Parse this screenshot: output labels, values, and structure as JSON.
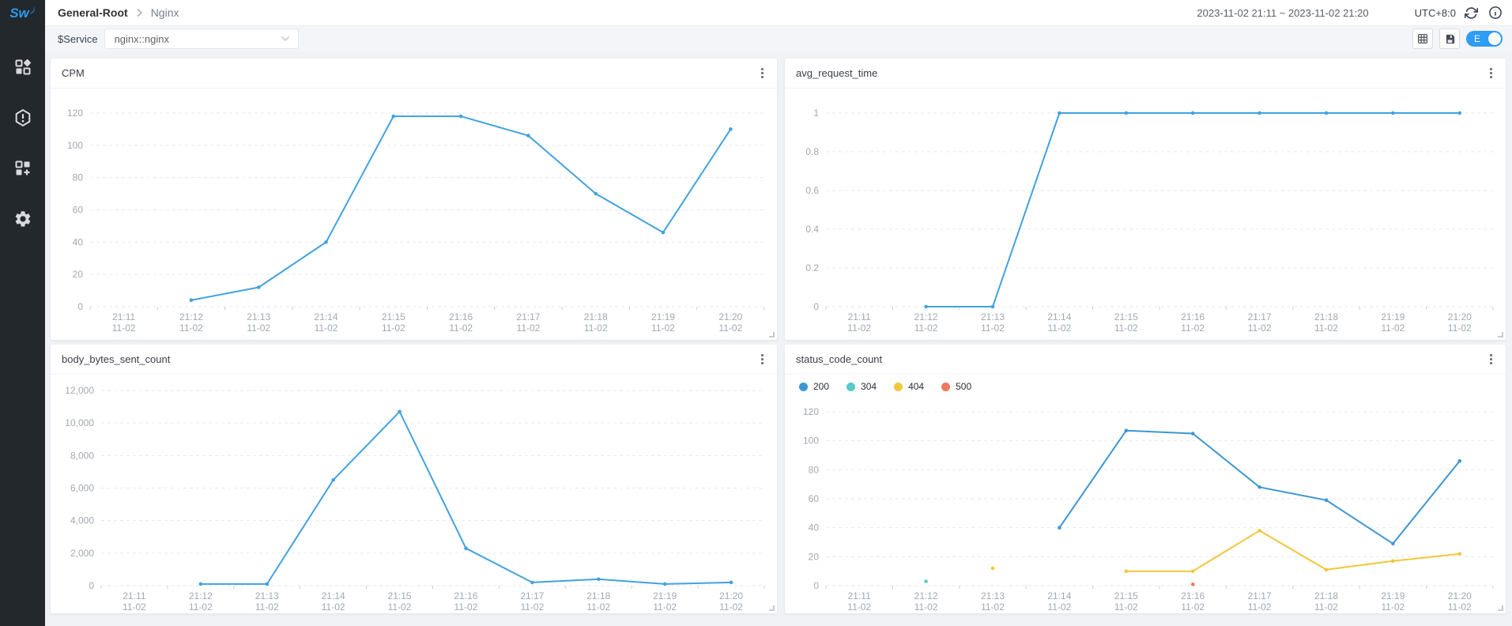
{
  "sidebar": {
    "logo_text": "Sw",
    "items": [
      {
        "name": "marketplace",
        "icon": "marketplace-icon"
      },
      {
        "name": "alerts",
        "icon": "alert-hexagon-icon"
      },
      {
        "name": "dashboards",
        "icon": "widgets-plus-icon"
      },
      {
        "name": "settings",
        "icon": "gear-icon"
      }
    ]
  },
  "header": {
    "breadcrumb": {
      "root": "General-Root",
      "current": "Nginx"
    },
    "time_range": "2023-11-02 21:11 ~ 2023-11-02 21:20",
    "timezone": "UTC+8:0"
  },
  "toolbar": {
    "variable_label": "$Service",
    "service_select": {
      "value": "nginx::nginx"
    },
    "edit_toggle": {
      "label": "E",
      "state": "on",
      "color": "#2f9cf5"
    }
  },
  "chart_data": [
    {
      "type": "line",
      "title": "CPM",
      "x": [
        "21:11",
        "21:12",
        "21:13",
        "21:14",
        "21:15",
        "21:16",
        "21:17",
        "21:18",
        "21:19",
        "21:20"
      ],
      "x_sublabel": "11-02",
      "ylim": [
        0,
        120
      ],
      "yticks": [
        0,
        20,
        40,
        60,
        80,
        100,
        120
      ],
      "grid": "horizontal-dashed",
      "legend": false,
      "series": [
        {
          "name": "CPM",
          "color": "#41a2e0",
          "values": [
            null,
            4,
            12,
            40,
            118,
            118,
            106,
            70,
            46,
            110
          ]
        }
      ]
    },
    {
      "type": "line",
      "title": "avg_request_time",
      "x": [
        "21:11",
        "21:12",
        "21:13",
        "21:14",
        "21:15",
        "21:16",
        "21:17",
        "21:18",
        "21:19",
        "21:20"
      ],
      "x_sublabel": "11-02",
      "ylim": [
        0,
        1
      ],
      "yticks": [
        0,
        0.2,
        0.4,
        0.6,
        0.8,
        1
      ],
      "grid": "horizontal-dashed",
      "legend": false,
      "series": [
        {
          "name": "avg_request_time",
          "color": "#41a2e0",
          "values": [
            null,
            0,
            0,
            1,
            1,
            1,
            1,
            1,
            1,
            1
          ]
        }
      ]
    },
    {
      "type": "line",
      "title": "body_bytes_sent_count",
      "x": [
        "21:11",
        "21:12",
        "21:13",
        "21:14",
        "21:15",
        "21:16",
        "21:17",
        "21:18",
        "21:19",
        "21:20"
      ],
      "x_sublabel": "11-02",
      "ylim": [
        0,
        12000
      ],
      "yticks": [
        0,
        2000,
        4000,
        6000,
        8000,
        10000,
        12000
      ],
      "grid": "horizontal-dashed",
      "legend": false,
      "series": [
        {
          "name": "body_bytes_sent_count",
          "color": "#41a2e0",
          "values": [
            null,
            100,
            100,
            6500,
            10700,
            2300,
            200,
            400,
            100,
            200
          ]
        }
      ]
    },
    {
      "type": "line",
      "title": "status_code_count",
      "x": [
        "21:11",
        "21:12",
        "21:13",
        "21:14",
        "21:15",
        "21:16",
        "21:17",
        "21:18",
        "21:19",
        "21:20"
      ],
      "x_sublabel": "11-02",
      "ylim": [
        0,
        120
      ],
      "yticks": [
        0,
        20,
        40,
        60,
        80,
        100,
        120
      ],
      "grid": "horizontal-dashed",
      "legend": true,
      "legend_position": "top-left",
      "series": [
        {
          "name": "200",
          "color": "#3d96d4",
          "values": [
            null,
            null,
            null,
            40,
            107,
            105,
            68,
            59,
            29,
            86
          ]
        },
        {
          "name": "304",
          "color": "#57caca",
          "values": [
            null,
            3,
            null,
            null,
            null,
            null,
            null,
            null,
            null,
            null
          ]
        },
        {
          "name": "404",
          "color": "#f2c63c",
          "values": [
            null,
            null,
            12,
            null,
            10,
            10,
            38,
            11,
            17,
            22
          ]
        },
        {
          "name": "500",
          "color": "#ee795a",
          "values": [
            null,
            null,
            null,
            null,
            null,
            1,
            null,
            null,
            null,
            null
          ]
        }
      ]
    }
  ]
}
